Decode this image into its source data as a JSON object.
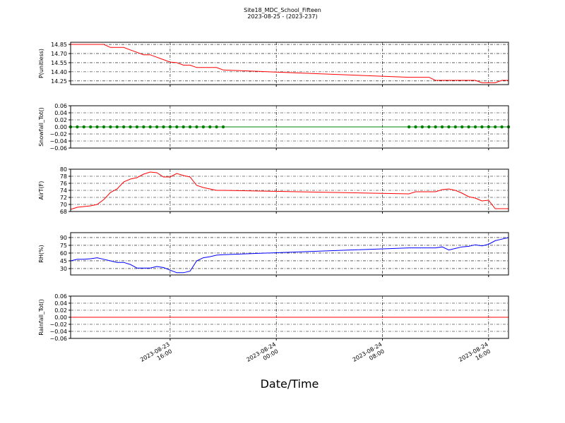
{
  "chart_data": {
    "type": "line",
    "title": "Site18_MDC_School_Fifteen",
    "subtitle": "2023-08-25 - (2023-237)",
    "x_label": "Date/Time",
    "grid": true,
    "xlim": [
      "2023-08-23 08:30",
      "2023-08-24 17:30"
    ],
    "xticks": [
      "2023-08-23 16:00",
      "2023-08-24 00:00",
      "2023-08-24 08:00",
      "2023-08-24 16:00"
    ],
    "x": [
      "2023-08-23 08:30",
      "2023-08-23 09:00",
      "2023-08-23 09:30",
      "2023-08-23 10:00",
      "2023-08-23 10:30",
      "2023-08-23 11:00",
      "2023-08-23 11:30",
      "2023-08-23 12:00",
      "2023-08-23 12:30",
      "2023-08-23 13:00",
      "2023-08-23 13:30",
      "2023-08-23 14:00",
      "2023-08-23 14:30",
      "2023-08-23 15:00",
      "2023-08-23 15:30",
      "2023-08-23 16:00",
      "2023-08-23 16:30",
      "2023-08-23 17:00",
      "2023-08-23 17:30",
      "2023-08-23 18:00",
      "2023-08-23 18:30",
      "2023-08-23 19:00",
      "2023-08-23 19:30",
      "2023-08-23 20:00",
      "2023-08-24 10:00",
      "2023-08-24 10:30",
      "2023-08-24 11:00",
      "2023-08-24 11:30",
      "2023-08-24 12:00",
      "2023-08-24 12:30",
      "2023-08-24 13:00",
      "2023-08-24 13:30",
      "2023-08-24 14:00",
      "2023-08-24 14:30",
      "2023-08-24 15:00",
      "2023-08-24 15:30",
      "2023-08-24 16:00",
      "2023-08-24 16:30",
      "2023-08-24 17:00",
      "2023-08-24 17:30"
    ],
    "panels": [
      {
        "ylabel": "P(unitless)",
        "ylim": [
          14.19,
          14.885
        ],
        "yticks": [
          {
            "value": 14.25,
            "label": "14.25"
          },
          {
            "value": 14.4,
            "label": "14.40"
          },
          {
            "value": 14.55,
            "label": "14.55"
          },
          {
            "value": 14.7,
            "label": "14.70"
          },
          {
            "value": 14.85,
            "label": "14.85"
          }
        ],
        "series": [
          {
            "color": "#ff0000",
            "markers": false,
            "values": [
              14.85,
              14.85,
              14.85,
              14.85,
              14.85,
              14.85,
              14.8,
              14.8,
              14.8,
              14.76,
              14.72,
              14.68,
              14.68,
              14.64,
              14.6,
              14.56,
              14.55,
              14.51,
              14.51,
              14.47,
              14.47,
              14.47,
              14.47,
              14.43,
              14.31,
              14.31,
              14.31,
              14.31,
              14.26,
              14.26,
              14.26,
              14.26,
              14.26,
              14.26,
              14.26,
              14.22,
              14.22,
              14.22,
              14.26,
              14.26
            ]
          }
        ]
      },
      {
        "ylabel": "Snowfall_Tot()",
        "ylim": [
          -0.06,
          0.06
        ],
        "yticks": [
          {
            "value": -0.06,
            "label": "−0.06"
          },
          {
            "value": -0.04,
            "label": "−0.04"
          },
          {
            "value": -0.02,
            "label": "−0.02"
          },
          {
            "value": 0,
            "label": "0.00"
          },
          {
            "value": 0.02,
            "label": "0.02"
          },
          {
            "value": 0.04,
            "label": "0.04"
          },
          {
            "value": 0.06,
            "label": "0.06"
          }
        ],
        "series": [
          {
            "color": "#008000",
            "markers": true,
            "values": [
              0,
              0,
              0,
              0,
              0,
              0,
              0,
              0,
              0,
              0,
              0,
              0,
              0,
              0,
              0,
              0,
              0,
              0,
              0,
              0,
              0,
              0,
              0,
              0,
              0,
              0,
              0,
              0,
              0,
              0,
              0,
              0,
              0,
              0,
              0,
              0,
              0,
              0,
              0,
              0
            ]
          }
        ]
      },
      {
        "ylabel": "AirT(F)",
        "ylim": [
          68,
          80
        ],
        "yticks": [
          68,
          70,
          72,
          74,
          76,
          78,
          80
        ],
        "series": [
          {
            "color": "#ff0000",
            "markers": false,
            "values": [
              68.6,
              69.2,
              69.4,
              69.6,
              70,
              71.4,
              73.4,
              74.4,
              76.4,
              77.2,
              77.6,
              78.6,
              79.2,
              79,
              77.8,
              77.8,
              78.8,
              78.2,
              77.8,
              75.4,
              74.8,
              74.4,
              74,
              74,
              73,
              73.6,
              73.6,
              73.6,
              73.6,
              74.2,
              74.4,
              74,
              73.2,
              72.2,
              71.8,
              71,
              71.2,
              68.8,
              68.8,
              68.8
            ]
          }
        ]
      },
      {
        "ylabel": "RH(%)",
        "ylim": [
          17.7,
          99.5
        ],
        "yticks": [
          30,
          45,
          60,
          75,
          90
        ],
        "series": [
          {
            "color": "#0000ff",
            "markers": false,
            "values": [
              45,
              48,
              48,
              49,
              51,
              48,
              45,
              42,
              42,
              38,
              31,
              31,
              31,
              34,
              32,
              27,
              22,
              22,
              25,
              45,
              51,
              53,
              56,
              57,
              70,
              70,
              70,
              70,
              70,
              72,
              66,
              69,
              72,
              73,
              76,
              74,
              77,
              84,
              87,
              90
            ]
          }
        ]
      },
      {
        "ylabel": "Rainfall_Tot()",
        "ylim": [
          -0.06,
          0.06
        ],
        "yticks": [
          {
            "value": -0.06,
            "label": "−0.06"
          },
          {
            "value": -0.04,
            "label": "−0.04"
          },
          {
            "value": -0.02,
            "label": "−0.02"
          },
          {
            "value": 0,
            "label": "0.00"
          },
          {
            "value": 0.02,
            "label": "0.02"
          },
          {
            "value": 0.04,
            "label": "0.04"
          },
          {
            "value": 0.06,
            "label": "0.06"
          }
        ],
        "series": [
          {
            "color": "#ff0000",
            "markers": false,
            "values": [
              0,
              0,
              0,
              0,
              0,
              0,
              0,
              0,
              0,
              0,
              0,
              0,
              0,
              0,
              0,
              0,
              0,
              0,
              0,
              0,
              0,
              0,
              0,
              0,
              0,
              0,
              0,
              0,
              0,
              0,
              0,
              0,
              0,
              0,
              0,
              0,
              0,
              0,
              0,
              0
            ]
          }
        ]
      }
    ]
  }
}
